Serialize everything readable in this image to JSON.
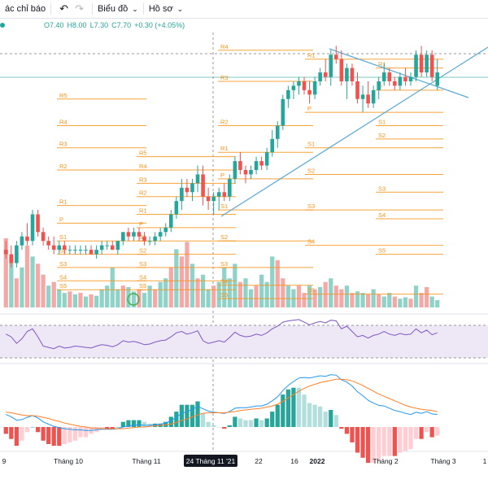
{
  "toolbar": {
    "indicators_label": "ác chỉ báo",
    "chart_type_label": "Biểu đồ",
    "profile_label": "Hồ sơ"
  },
  "legend": {
    "open": "O7.40",
    "high": "H8.00",
    "low": "L7.30",
    "close": "C7.70",
    "change": "+0.30 (+4.05%)"
  },
  "colors": {
    "up": "#26a69a",
    "down": "#ef5350",
    "up_volume": "#8fd3c8",
    "down_volume": "#f5a9a7",
    "pivot": "#f7931a",
    "trendline": "#5aa9d6",
    "rsi": "#7e57c2",
    "rsi_band": "#ede7f6",
    "macd": "#2196f3",
    "signal": "#ff7f27"
  },
  "chart_data": [
    {
      "type": "candlestick",
      "ylim": [
        2.4,
        8.6
      ],
      "ohlc": [
        [
          3.7,
          3.9,
          3.5,
          3.6
        ],
        [
          3.6,
          3.8,
          3.3,
          3.4
        ],
        [
          3.4,
          3.9,
          3.3,
          3.8
        ],
        [
          3.8,
          4.1,
          3.7,
          4.0
        ],
        [
          4.0,
          4.3,
          3.8,
          3.9
        ],
        [
          3.9,
          4.6,
          3.8,
          4.5
        ],
        [
          4.5,
          4.6,
          4.0,
          4.1
        ],
        [
          4.1,
          4.2,
          3.8,
          3.9
        ],
        [
          3.9,
          4.0,
          3.7,
          3.8
        ],
        [
          3.8,
          4.0,
          3.6,
          3.7
        ],
        [
          3.7,
          3.9,
          3.6,
          3.8
        ],
        [
          3.8,
          3.9,
          3.6,
          3.7
        ],
        [
          3.7,
          3.8,
          3.6,
          3.7
        ],
        [
          3.7,
          3.8,
          3.6,
          3.7
        ],
        [
          3.7,
          3.8,
          3.6,
          3.7
        ],
        [
          3.7,
          3.8,
          3.6,
          3.7
        ],
        [
          3.7,
          3.8,
          3.6,
          3.6
        ],
        [
          3.6,
          3.8,
          3.5,
          3.7
        ],
        [
          3.7,
          3.9,
          3.6,
          3.8
        ],
        [
          3.8,
          3.9,
          3.7,
          3.8
        ],
        [
          3.8,
          3.9,
          3.7,
          3.7
        ],
        [
          3.7,
          3.9,
          3.6,
          3.9
        ],
        [
          3.9,
          4.1,
          3.8,
          4.1
        ],
        [
          4.1,
          4.2,
          3.9,
          4.0
        ],
        [
          4.0,
          4.2,
          3.9,
          4.1
        ],
        [
          4.1,
          4.2,
          3.9,
          4.0
        ],
        [
          4.0,
          4.1,
          3.8,
          3.9
        ],
        [
          3.9,
          4.0,
          3.8,
          3.9
        ],
        [
          3.9,
          4.1,
          3.8,
          4.0
        ],
        [
          4.0,
          4.2,
          3.9,
          4.1
        ],
        [
          4.1,
          4.3,
          4.0,
          4.2
        ],
        [
          4.2,
          4.6,
          4.1,
          4.5
        ],
        [
          4.5,
          4.9,
          4.4,
          4.8
        ],
        [
          4.8,
          5.3,
          4.6,
          5.1
        ],
        [
          5.1,
          5.3,
          4.9,
          5.0
        ],
        [
          5.0,
          5.3,
          4.8,
          5.2
        ],
        [
          5.2,
          5.6,
          5.0,
          5.4
        ],
        [
          5.4,
          5.6,
          4.7,
          4.9
        ],
        [
          4.9,
          5.1,
          4.6,
          4.8
        ],
        [
          4.8,
          5.0,
          4.5,
          4.9
        ],
        [
          4.9,
          5.1,
          4.6,
          5.0
        ],
        [
          5.0,
          5.2,
          4.8,
          4.9
        ],
        [
          4.9,
          5.4,
          4.8,
          5.3
        ],
        [
          5.3,
          5.8,
          5.2,
          5.7
        ],
        [
          5.7,
          5.9,
          5.4,
          5.5
        ],
        [
          5.5,
          5.6,
          5.2,
          5.4
        ],
        [
          5.4,
          5.6,
          5.3,
          5.5
        ],
        [
          5.5,
          5.8,
          5.4,
          5.7
        ],
        [
          5.7,
          5.8,
          5.5,
          5.6
        ],
        [
          5.6,
          6.0,
          5.5,
          5.9
        ],
        [
          5.9,
          6.4,
          5.8,
          6.2
        ],
        [
          6.2,
          6.6,
          6.0,
          6.5
        ],
        [
          6.5,
          7.2,
          6.4,
          7.1
        ],
        [
          7.1,
          7.4,
          6.9,
          7.3
        ],
        [
          7.3,
          7.5,
          7.1,
          7.4
        ],
        [
          7.4,
          7.6,
          7.2,
          7.5
        ],
        [
          7.5,
          7.6,
          7.2,
          7.3
        ],
        [
          7.3,
          7.5,
          7.0,
          7.2
        ],
        [
          7.2,
          7.6,
          7.1,
          7.5
        ],
        [
          7.5,
          7.8,
          7.4,
          7.7
        ],
        [
          7.7,
          8.0,
          7.5,
          7.6
        ],
        [
          7.6,
          8.2,
          7.4,
          8.1
        ],
        [
          8.1,
          8.3,
          7.9,
          8.0
        ],
        [
          8.0,
          8.2,
          7.4,
          7.5
        ],
        [
          7.5,
          7.9,
          7.1,
          7.8
        ],
        [
          7.8,
          7.9,
          7.4,
          7.5
        ],
        [
          7.5,
          7.7,
          7.0,
          7.1
        ],
        [
          7.1,
          7.4,
          6.8,
          7.2
        ],
        [
          7.2,
          7.5,
          6.9,
          7.0
        ],
        [
          7.0,
          7.4,
          6.9,
          7.3
        ],
        [
          7.3,
          7.6,
          7.1,
          7.5
        ],
        [
          7.5,
          7.9,
          7.4,
          7.7
        ],
        [
          7.7,
          7.8,
          7.4,
          7.5
        ],
        [
          7.5,
          7.6,
          7.3,
          7.4
        ],
        [
          7.4,
          7.7,
          7.3,
          7.6
        ],
        [
          7.6,
          7.8,
          7.4,
          7.5
        ],
        [
          7.5,
          7.7,
          7.4,
          7.6
        ],
        [
          7.6,
          8.2,
          7.5,
          8.1
        ],
        [
          8.1,
          8.3,
          7.6,
          7.7
        ],
        [
          7.7,
          8.2,
          7.6,
          8.1
        ],
        [
          8.1,
          8.2,
          7.5,
          7.6
        ],
        [
          7.4,
          8.0,
          7.3,
          7.7
        ]
      ],
      "volume": [
        [
          95,
          0
        ],
        [
          70,
          1
        ],
        [
          40,
          0
        ],
        [
          55,
          1
        ],
        [
          85,
          0
        ],
        [
          70,
          1
        ],
        [
          60,
          0
        ],
        [
          45,
          0
        ],
        [
          30,
          1
        ],
        [
          35,
          0
        ],
        [
          25,
          1
        ],
        [
          20,
          1
        ],
        [
          22,
          0
        ],
        [
          18,
          1
        ],
        [
          20,
          0
        ],
        [
          15,
          1
        ],
        [
          18,
          0
        ],
        [
          16,
          1
        ],
        [
          25,
          1
        ],
        [
          30,
          1
        ],
        [
          55,
          1
        ],
        [
          25,
          1
        ],
        [
          30,
          0
        ],
        [
          28,
          1
        ],
        [
          22,
          1
        ],
        [
          25,
          0
        ],
        [
          20,
          1
        ],
        [
          30,
          1
        ],
        [
          25,
          0
        ],
        [
          35,
          1
        ],
        [
          40,
          1
        ],
        [
          55,
          0
        ],
        [
          80,
          1
        ],
        [
          70,
          0
        ],
        [
          90,
          0
        ],
        [
          60,
          1
        ],
        [
          40,
          0
        ],
        [
          45,
          1
        ],
        [
          25,
          1
        ],
        [
          30,
          0
        ],
        [
          35,
          1
        ],
        [
          55,
          1
        ],
        [
          40,
          1
        ],
        [
          60,
          1
        ],
        [
          35,
          0
        ],
        [
          40,
          1
        ],
        [
          25,
          1
        ],
        [
          30,
          0
        ],
        [
          45,
          1
        ],
        [
          35,
          1
        ],
        [
          70,
          1
        ],
        [
          65,
          0
        ],
        [
          40,
          0
        ],
        [
          30,
          1
        ],
        [
          25,
          1
        ],
        [
          30,
          0
        ],
        [
          20,
          0
        ],
        [
          30,
          1
        ],
        [
          25,
          0
        ],
        [
          28,
          1
        ],
        [
          35,
          0
        ],
        [
          40,
          1
        ],
        [
          30,
          0
        ],
        [
          25,
          0
        ],
        [
          30,
          1
        ],
        [
          20,
          0
        ],
        [
          22,
          1
        ],
        [
          20,
          1
        ],
        [
          18,
          0
        ],
        [
          25,
          1
        ],
        [
          18,
          0
        ],
        [
          15,
          1
        ],
        [
          20,
          1
        ],
        [
          15,
          0
        ],
        [
          12,
          1
        ],
        [
          14,
          1
        ],
        [
          12,
          0
        ],
        [
          30,
          1
        ],
        [
          20,
          0
        ],
        [
          28,
          0
        ],
        [
          15,
          1
        ],
        [
          10,
          1
        ]
      ],
      "rsi": [
        62,
        58,
        48,
        55,
        66,
        70,
        58,
        44,
        42,
        40,
        44,
        41,
        42,
        44,
        43,
        42,
        41,
        44,
        46,
        45,
        43,
        46,
        52,
        50,
        51,
        49,
        46,
        47,
        50,
        52,
        53,
        58,
        64,
        66,
        62,
        64,
        67,
        52,
        48,
        50,
        52,
        50,
        57,
        65,
        60,
        58,
        59,
        62,
        60,
        64,
        70,
        74,
        80,
        82,
        83,
        84,
        80,
        76,
        79,
        81,
        79,
        83,
        82,
        70,
        74,
        66,
        58,
        60,
        56,
        60,
        62,
        66,
        62,
        60,
        63,
        61,
        62,
        70,
        64,
        68,
        61,
        64
      ],
      "macd": [
        0.22,
        0.18,
        0.12,
        0.13,
        0.17,
        0.2,
        0.16,
        0.09,
        0.05,
        0.01,
        -0.01,
        -0.03,
        -0.04,
        -0.05,
        -0.05,
        -0.06,
        -0.06,
        -0.05,
        -0.04,
        -0.04,
        -0.04,
        -0.03,
        0.0,
        0.02,
        0.03,
        0.04,
        0.03,
        0.03,
        0.04,
        0.05,
        0.07,
        0.11,
        0.17,
        0.24,
        0.27,
        0.31,
        0.36,
        0.32,
        0.28,
        0.26,
        0.25,
        0.24,
        0.27,
        0.33,
        0.34,
        0.34,
        0.35,
        0.37,
        0.37,
        0.4,
        0.46,
        0.53,
        0.64,
        0.73,
        0.8,
        0.86,
        0.87,
        0.86,
        0.88,
        0.9,
        0.89,
        0.92,
        0.91,
        0.83,
        0.79,
        0.72,
        0.62,
        0.55,
        0.47,
        0.42,
        0.38,
        0.37,
        0.33,
        0.29,
        0.27,
        0.24,
        0.22,
        0.26,
        0.24,
        0.27,
        0.23,
        0.22
      ],
      "signal": [
        0.26,
        0.25,
        0.23,
        0.21,
        0.2,
        0.2,
        0.19,
        0.17,
        0.15,
        0.12,
        0.1,
        0.07,
        0.05,
        0.03,
        0.01,
        0.0,
        -0.02,
        -0.02,
        -0.03,
        -0.03,
        -0.03,
        -0.03,
        -0.03,
        -0.02,
        -0.01,
        0.0,
        0.0,
        0.01,
        0.02,
        0.03,
        0.04,
        0.05,
        0.08,
        0.11,
        0.14,
        0.18,
        0.21,
        0.24,
        0.25,
        0.25,
        0.25,
        0.25,
        0.26,
        0.27,
        0.29,
        0.3,
        0.31,
        0.32,
        0.33,
        0.35,
        0.37,
        0.4,
        0.45,
        0.51,
        0.57,
        0.63,
        0.68,
        0.72,
        0.75,
        0.78,
        0.8,
        0.82,
        0.84,
        0.84,
        0.83,
        0.81,
        0.77,
        0.73,
        0.68,
        0.63,
        0.58,
        0.54,
        0.5,
        0.46,
        0.42,
        0.38,
        0.35,
        0.33,
        0.31,
        0.3,
        0.29,
        0.27
      ]
    },
    {
      "type": "pivot-levels",
      "periods": [
        {
          "levels": [
            [
              "R5",
              7.1
            ],
            [
              "R4",
              6.5
            ],
            [
              "R3",
              6.0
            ],
            [
              "R2",
              5.5
            ],
            [
              "R1",
              4.7
            ],
            [
              "P",
              4.3
            ],
            [
              "S1",
              3.9
            ],
            [
              "S2",
              3.6
            ],
            [
              "S3",
              3.3
            ],
            [
              "S4",
              3.0
            ],
            [
              "S5",
              2.8
            ]
          ]
        },
        {
          "levels": [
            [
              "R5",
              5.8
            ],
            [
              "R4",
              5.5
            ],
            [
              "R3",
              5.2
            ],
            [
              "R2",
              4.9
            ],
            [
              "R1",
              4.5
            ],
            [
              "P",
              4.2
            ],
            [
              "S1",
              3.9
            ],
            [
              "S2",
              3.6
            ],
            [
              "S3",
              3.3
            ],
            [
              "S4",
              3.0
            ],
            [
              "S5",
              2.8
            ]
          ]
        },
        {
          "levels": [
            [
              "R4",
              8.2
            ],
            [
              "R3",
              7.5
            ],
            [
              "R2",
              6.5
            ],
            [
              "R1",
              5.9
            ],
            [
              "P",
              5.3
            ],
            [
              "S1",
              4.6
            ],
            [
              "S2",
              3.9
            ],
            [
              "S3",
              3.3
            ],
            [
              "S4",
              2.9
            ],
            [
              "S5",
              2.6
            ]
          ]
        },
        {
          "levels": [
            [
              "R1",
              8.0
            ],
            [
              "P",
              6.8
            ],
            [
              "S1",
              6.0
            ],
            [
              "S2",
              5.4
            ],
            [
              "S3",
              4.6
            ],
            [
              "S4",
              3.8
            ],
            [
              "S5",
              2.7
            ]
          ]
        },
        {
          "levels": [
            [
              "R1",
              7.8
            ],
            [
              "P",
              7.3
            ],
            [
              "S1",
              6.5
            ],
            [
              "S2",
              6.2
            ],
            [
              "S3",
              5.0
            ],
            [
              "S4",
              4.4
            ],
            [
              "S5",
              3.6
            ]
          ]
        }
      ]
    }
  ],
  "x_axis": {
    "labels": [
      "9",
      "Tháng 10",
      "Tháng 11",
      "24 Tháng 11 '21",
      "22",
      "16",
      "2022",
      "Tháng 2",
      "Tháng 3",
      "1"
    ]
  }
}
